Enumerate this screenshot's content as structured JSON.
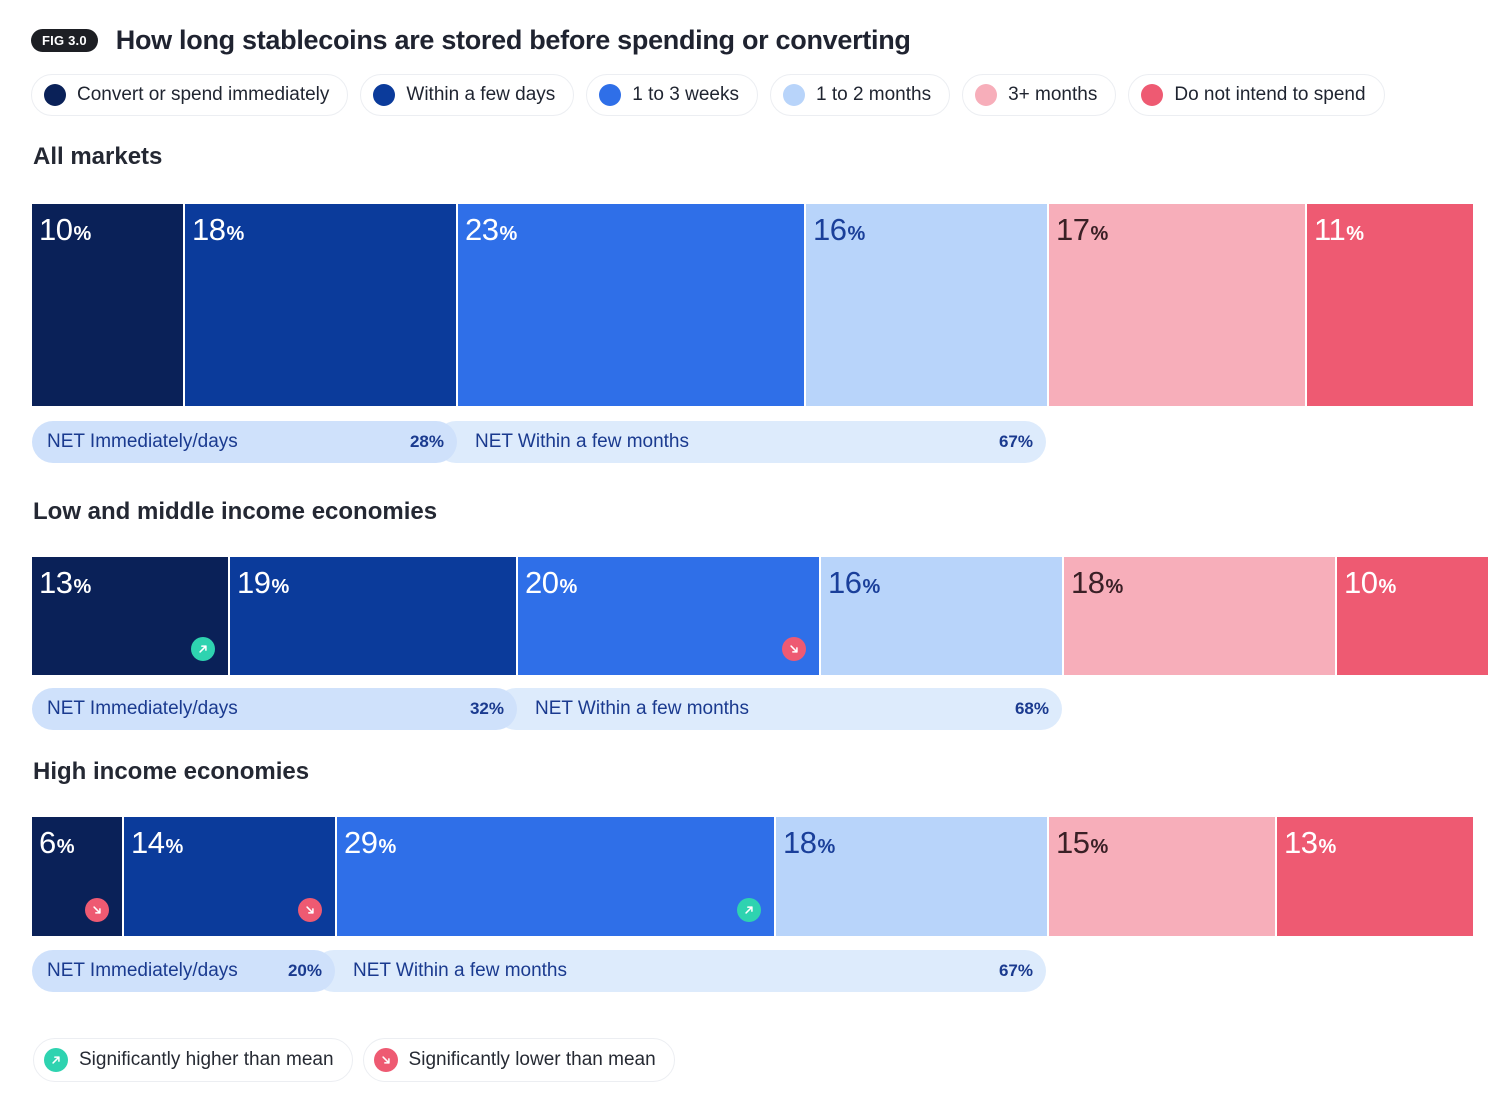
{
  "figure": {
    "badge": "FIG 3.0",
    "title": "How long stablecoins are stored before spending or converting"
  },
  "legend": [
    {
      "label": "Convert or spend immediately",
      "color": "#0a2158"
    },
    {
      "label": "Within a few days",
      "color": "#0b3b9b"
    },
    {
      "label": "1 to 3 weeks",
      "color": "#2f6fe8"
    },
    {
      "label": "1 to 2 months",
      "color": "#b8d4fa"
    },
    {
      "label": "3+ months",
      "color": "#f7aeba"
    },
    {
      "label": "Do not intend to spend",
      "color": "#ee5a72"
    }
  ],
  "significance": {
    "higher": {
      "label": "Significantly higher than mean",
      "color": "#2ed3b0",
      "icon": "arrow-up-right-icon"
    },
    "lower": {
      "label": "Significantly lower than mean",
      "color": "#ee5a72",
      "icon": "arrow-down-right-icon"
    }
  },
  "chart_data": {
    "type": "bar",
    "orientation": "horizontal-stacked",
    "title": "How long stablecoins are stored before spending or converting",
    "unit": "%",
    "categories": [
      "Convert or spend immediately",
      "Within a few days",
      "1 to 3 weeks",
      "1 to 2 months",
      "3+ months",
      "Do not intend to spend"
    ],
    "groups": [
      {
        "name": "All markets",
        "values": [
          10,
          18,
          23,
          16,
          17,
          11
        ],
        "significance": [
          null,
          null,
          null,
          null,
          null,
          null
        ],
        "net": [
          {
            "label": "NET Immediately/days",
            "value": 28
          },
          {
            "label": "NET Within a few months",
            "value": 67
          }
        ]
      },
      {
        "name": "Low and middle income economies",
        "values": [
          13,
          19,
          20,
          16,
          18,
          10
        ],
        "significance": [
          "higher",
          null,
          "lower",
          null,
          null,
          null
        ],
        "net": [
          {
            "label": "NET Immediately/days",
            "value": 32
          },
          {
            "label": "NET Within a few months",
            "value": 68
          }
        ]
      },
      {
        "name": "High income economies",
        "values": [
          6,
          14,
          29,
          18,
          15,
          13
        ],
        "significance": [
          "lower",
          "lower",
          "higher",
          null,
          null,
          null
        ],
        "net": [
          {
            "label": "NET Immediately/days",
            "value": 20
          },
          {
            "label": "NET Within a few months",
            "value": 67
          }
        ]
      }
    ]
  }
}
